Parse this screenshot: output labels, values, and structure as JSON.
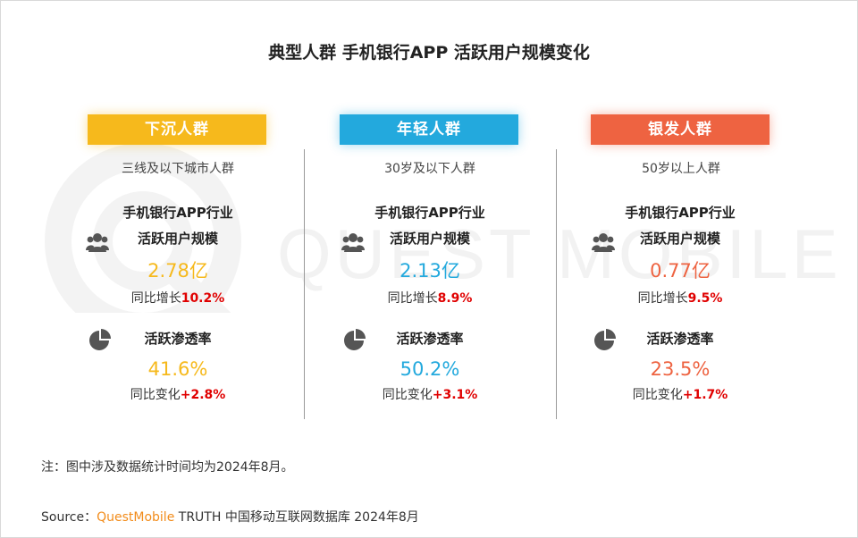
{
  "title": "典型人群 手机银行APP 活跃用户规模变化",
  "watermark": "QUEST MOBILE",
  "groups": [
    {
      "name": "下沉人群",
      "color": "#f6b91c",
      "value_color": "#f6b91c",
      "subtitle": "三线及以下城市人群",
      "metric1_label_line1": "手机银行APP行业",
      "metric1_label_line2": "活跃用户规模",
      "metric1_value": "2.78亿",
      "metric1_growth_prefix": "同比增长",
      "metric1_growth": "10.2%",
      "metric2_label": "活跃渗透率",
      "metric2_value": "41.6%",
      "metric2_growth_prefix": "同比变化",
      "metric2_growth": "+2.8%"
    },
    {
      "name": "年轻人群",
      "color": "#23a9dd",
      "value_color": "#23a9dd",
      "subtitle": "30岁及以下人群",
      "metric1_label_line1": "手机银行APP行业",
      "metric1_label_line2": "活跃用户规模",
      "metric1_value": "2.13亿",
      "metric1_growth_prefix": "同比增长",
      "metric1_growth": "8.9%",
      "metric2_label": "活跃渗透率",
      "metric2_value": "50.2%",
      "metric2_growth_prefix": "同比变化",
      "metric2_growth": "+3.1%"
    },
    {
      "name": "银发人群",
      "color": "#ee6341",
      "value_color": "#ee6341",
      "subtitle": "50岁以上人群",
      "metric1_label_line1": "手机银行APP行业",
      "metric1_label_line2": "活跃用户规模",
      "metric1_value": "0.77亿",
      "metric1_growth_prefix": "同比增长",
      "metric1_growth": "9.5%",
      "metric2_label": "活跃渗透率",
      "metric2_value": "23.5%",
      "metric2_growth_prefix": "同比变化",
      "metric2_growth": "+1.7%"
    }
  ],
  "icons": {
    "metric1": "users-icon",
    "metric2": "pie-chart-icon"
  },
  "note": "注：图中涉及数据统计时间均为2024年8月。",
  "source_prefix": "Source：",
  "source_brand": "QuestMobile",
  "source_rest": " TRUTH 中国移动互联网数据库 2024年8月"
}
